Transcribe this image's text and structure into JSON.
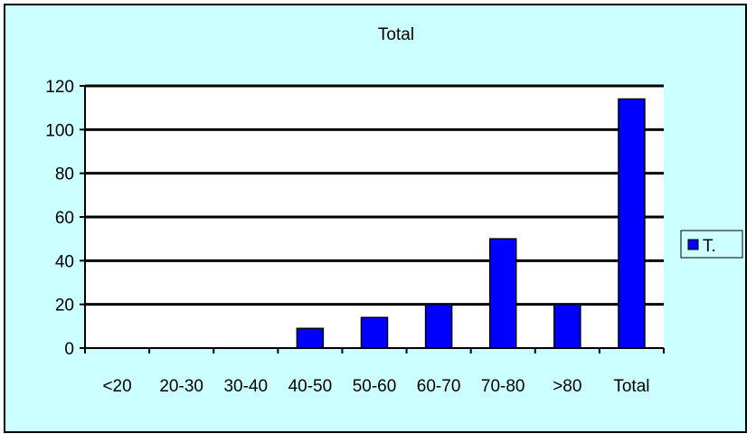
{
  "chart_data": {
    "type": "bar",
    "title": "Total",
    "categories": [
      "<20",
      "20-30",
      "30-40",
      "40-50",
      "50-60",
      "60-70",
      "70-80",
      ">80",
      "Total"
    ],
    "series": [
      {
        "name": "T.",
        "values": [
          0,
          0,
          0,
          9,
          14,
          20,
          50,
          20,
          114
        ],
        "color": "#0000ff"
      }
    ],
    "xlabel": "",
    "ylabel": "",
    "ylim": [
      0,
      120
    ],
    "yticks": [
      0,
      20,
      40,
      60,
      80,
      100,
      120
    ],
    "grid": true,
    "legend": "right",
    "colors": {
      "background": "#ccffff",
      "plot_area": "#ffffff",
      "gridline": "#000000",
      "bar": "#0000ff"
    }
  }
}
